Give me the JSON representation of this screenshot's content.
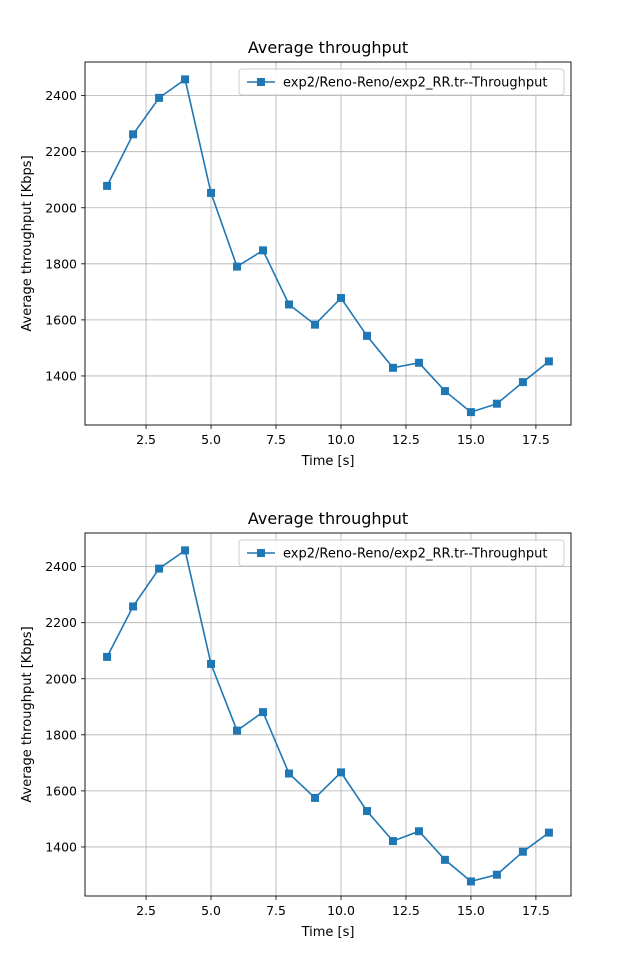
{
  "chart_data": [
    {
      "type": "line",
      "title": "Average throughput",
      "xlabel": "Time [s]",
      "ylabel": "Average throughput [Kbps]",
      "xlim": [
        0.15,
        18.85
      ],
      "ylim": [
        1225,
        2520
      ],
      "xticks": [
        2.5,
        5.0,
        7.5,
        10.0,
        12.5,
        15.0,
        17.5
      ],
      "xtick_labels": [
        "2.5",
        "5.0",
        "7.5",
        "10.0",
        "12.5",
        "15.0",
        "17.5"
      ],
      "yticks": [
        1400,
        1600,
        1800,
        2000,
        2200,
        2400
      ],
      "ytick_labels": [
        "1400",
        "1600",
        "1800",
        "2000",
        "2200",
        "2400"
      ],
      "grid": true,
      "legend_position": "top-right",
      "marker": "square",
      "color": "#1f77b4",
      "x": [
        1,
        2,
        3,
        4,
        5,
        6,
        7,
        8,
        9,
        10,
        11,
        12,
        13,
        14,
        15,
        16,
        17,
        18
      ],
      "series": [
        {
          "name": "exp2/Reno-Reno/exp2_RR.tr--Throughput",
          "values": [
            2078,
            2262,
            2392,
            2458,
            2053,
            1790,
            1848,
            1655,
            1583,
            1678,
            1543,
            1429,
            1447,
            1346,
            1271,
            1301,
            1378,
            1452
          ]
        }
      ]
    },
    {
      "type": "line",
      "title": "Average throughput",
      "xlabel": "Time [s]",
      "ylabel": "Average throughput [Kbps]",
      "xlim": [
        0.15,
        18.85
      ],
      "ylim": [
        1225,
        2520
      ],
      "xticks": [
        2.5,
        5.0,
        7.5,
        10.0,
        12.5,
        15.0,
        17.5
      ],
      "xtick_labels": [
        "2.5",
        "5.0",
        "7.5",
        "10.0",
        "12.5",
        "15.0",
        "17.5"
      ],
      "yticks": [
        1400,
        1600,
        1800,
        2000,
        2200,
        2400
      ],
      "ytick_labels": [
        "1400",
        "1600",
        "1800",
        "2000",
        "2200",
        "2400"
      ],
      "grid": true,
      "legend_position": "top-right",
      "marker": "square",
      "color": "#1f77b4",
      "x": [
        1,
        2,
        3,
        4,
        5,
        6,
        7,
        8,
        9,
        10,
        11,
        12,
        13,
        14,
        15,
        16,
        17,
        18
      ],
      "series": [
        {
          "name": "exp2/Reno-Reno/exp2_RR.tr--Throughput",
          "values": [
            2078,
            2258,
            2393,
            2458,
            2053,
            1815,
            1881,
            1662,
            1575,
            1666,
            1528,
            1421,
            1456,
            1354,
            1277,
            1301,
            1383,
            1451
          ]
        }
      ]
    }
  ]
}
